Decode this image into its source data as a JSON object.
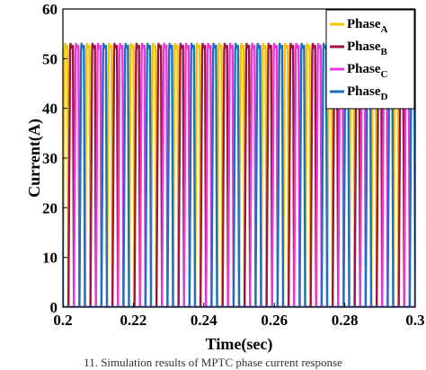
{
  "chart_data": {
    "type": "line",
    "title": "",
    "xlabel": "Time(sec)",
    "ylabel": "Current(A)",
    "xlim": [
      0.2,
      0.3
    ],
    "ylim": [
      0,
      60
    ],
    "xticks": [
      "0.2",
      "0.22",
      "0.24",
      "0.26",
      "0.28",
      "0.3"
    ],
    "yticks": [
      "0",
      "10",
      "20",
      "30",
      "40",
      "50",
      "60"
    ],
    "grid": false,
    "legend_position": "top-right",
    "pulse_period_sec": 0.00625,
    "pulse_peak_A": 53,
    "series": [
      {
        "name": "Phase",
        "subscript": "A",
        "color": "#f5c400",
        "phase_offset_sec": 0.0
      },
      {
        "name": "Phase",
        "subscript": "B",
        "color": "#9b1540",
        "phase_offset_sec": 0.0015625
      },
      {
        "name": "Phase",
        "subscript": "C",
        "color": "#e83ad8",
        "phase_offset_sec": 0.003125
      },
      {
        "name": "Phase",
        "subscript": "D",
        "color": "#1f6fc0",
        "phase_offset_sec": 0.0046875
      }
    ]
  },
  "caption": "11. Simulation results of MPTC phase current response"
}
